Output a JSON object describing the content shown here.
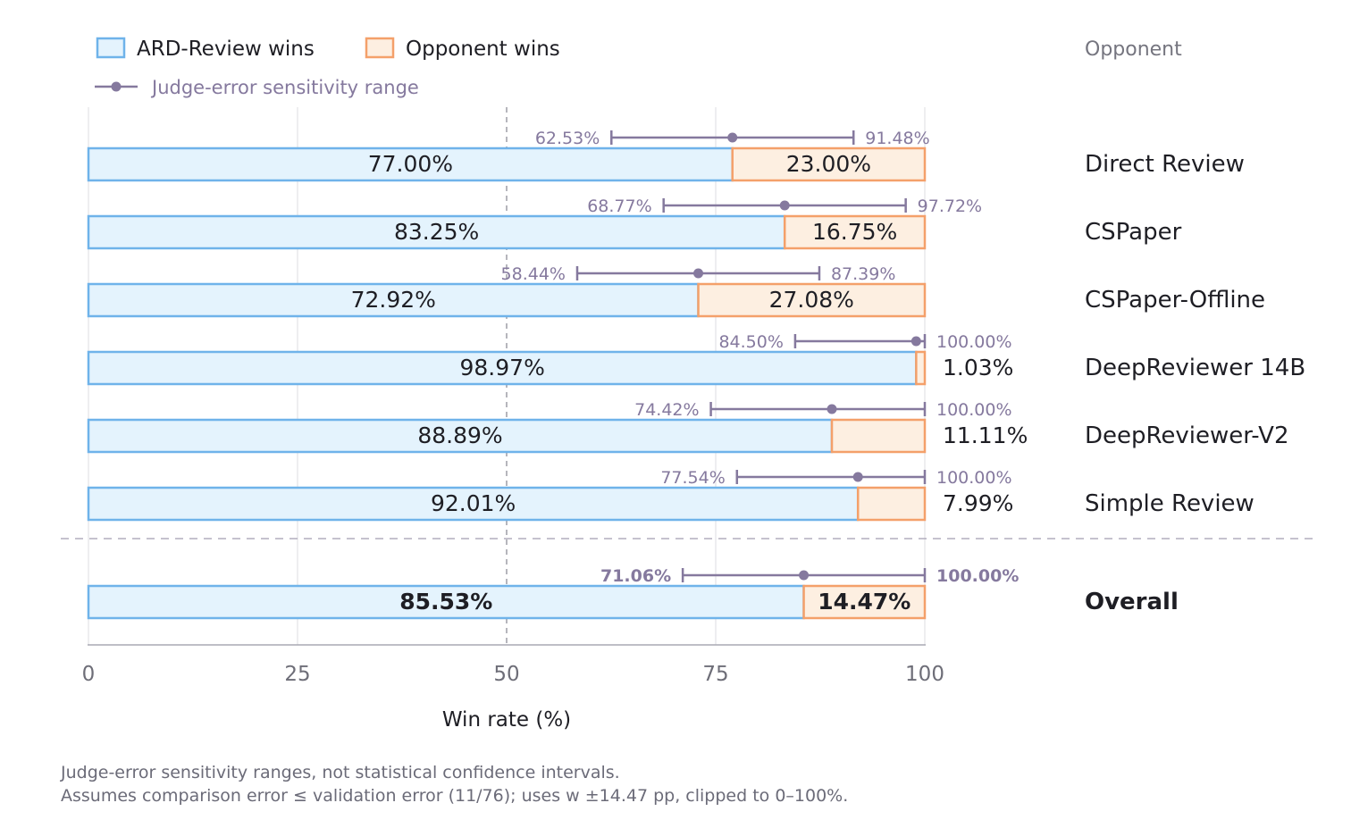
{
  "chart_data": {
    "type": "bar",
    "stacked": true,
    "orientation": "horizontal",
    "xlabel": "Win rate (%)",
    "xlim": [
      0,
      100
    ],
    "xticks": [
      0,
      25,
      50,
      75,
      100
    ],
    "reference_line": 50,
    "grid": "vertical",
    "column_header": "Opponent",
    "legend": {
      "placement": "top-left",
      "entries": [
        "ARD-Review wins",
        "Opponent wins",
        "Judge-error sensitivity range"
      ]
    },
    "colors": {
      "ard_fill": "#e4f3fd",
      "ard_stroke": "#6fb3ea",
      "opp_fill": "#fdefe1",
      "opp_stroke": "#f4a06a",
      "range": "#85799e"
    },
    "categories": [
      "Direct Review",
      "CSPaper",
      "CSPaper-Offline",
      "DeepReviewer 14B",
      "DeepReviewer-V2",
      "Simple Review",
      "Overall"
    ],
    "series": [
      {
        "name": "ARD-Review wins",
        "values": [
          77.0,
          83.25,
          72.92,
          98.97,
          88.89,
          92.01,
          85.53
        ],
        "labels": [
          "77.00%",
          "83.25%",
          "72.92%",
          "98.97%",
          "88.89%",
          "92.01%",
          "85.53%"
        ]
      },
      {
        "name": "Opponent wins",
        "values": [
          23.0,
          16.75,
          27.08,
          1.03,
          11.11,
          7.99,
          14.47
        ],
        "labels": [
          "23.00%",
          "16.75%",
          "27.08%",
          "1.03%",
          "11.11%",
          "7.99%",
          "14.47%"
        ]
      }
    ],
    "ranges": [
      {
        "low": 62.53,
        "high": 91.48,
        "low_label": "62.53%",
        "high_label": "91.48%"
      },
      {
        "low": 68.77,
        "high": 97.72,
        "low_label": "68.77%",
        "high_label": "97.72%"
      },
      {
        "low": 58.44,
        "high": 87.39,
        "low_label": "58.44%",
        "high_label": "87.39%"
      },
      {
        "low": 84.5,
        "high": 100.0,
        "low_label": "84.50%",
        "high_label": "100.00%"
      },
      {
        "low": 74.42,
        "high": 100.0,
        "low_label": "74.42%",
        "high_label": "100.00%"
      },
      {
        "low": 77.54,
        "high": 100.0,
        "low_label": "77.54%",
        "high_label": "100.00%"
      },
      {
        "low": 71.06,
        "high": 100.0,
        "low_label": "71.06%",
        "high_label": "100.00%"
      }
    ],
    "emphasized_category": "Overall"
  },
  "footnotes": [
    "Judge-error sensitivity ranges, not statistical confidence intervals.",
    "Assumes comparison error ≤ validation error (11/76); uses w ±14.47 pp, clipped to 0–100%."
  ]
}
